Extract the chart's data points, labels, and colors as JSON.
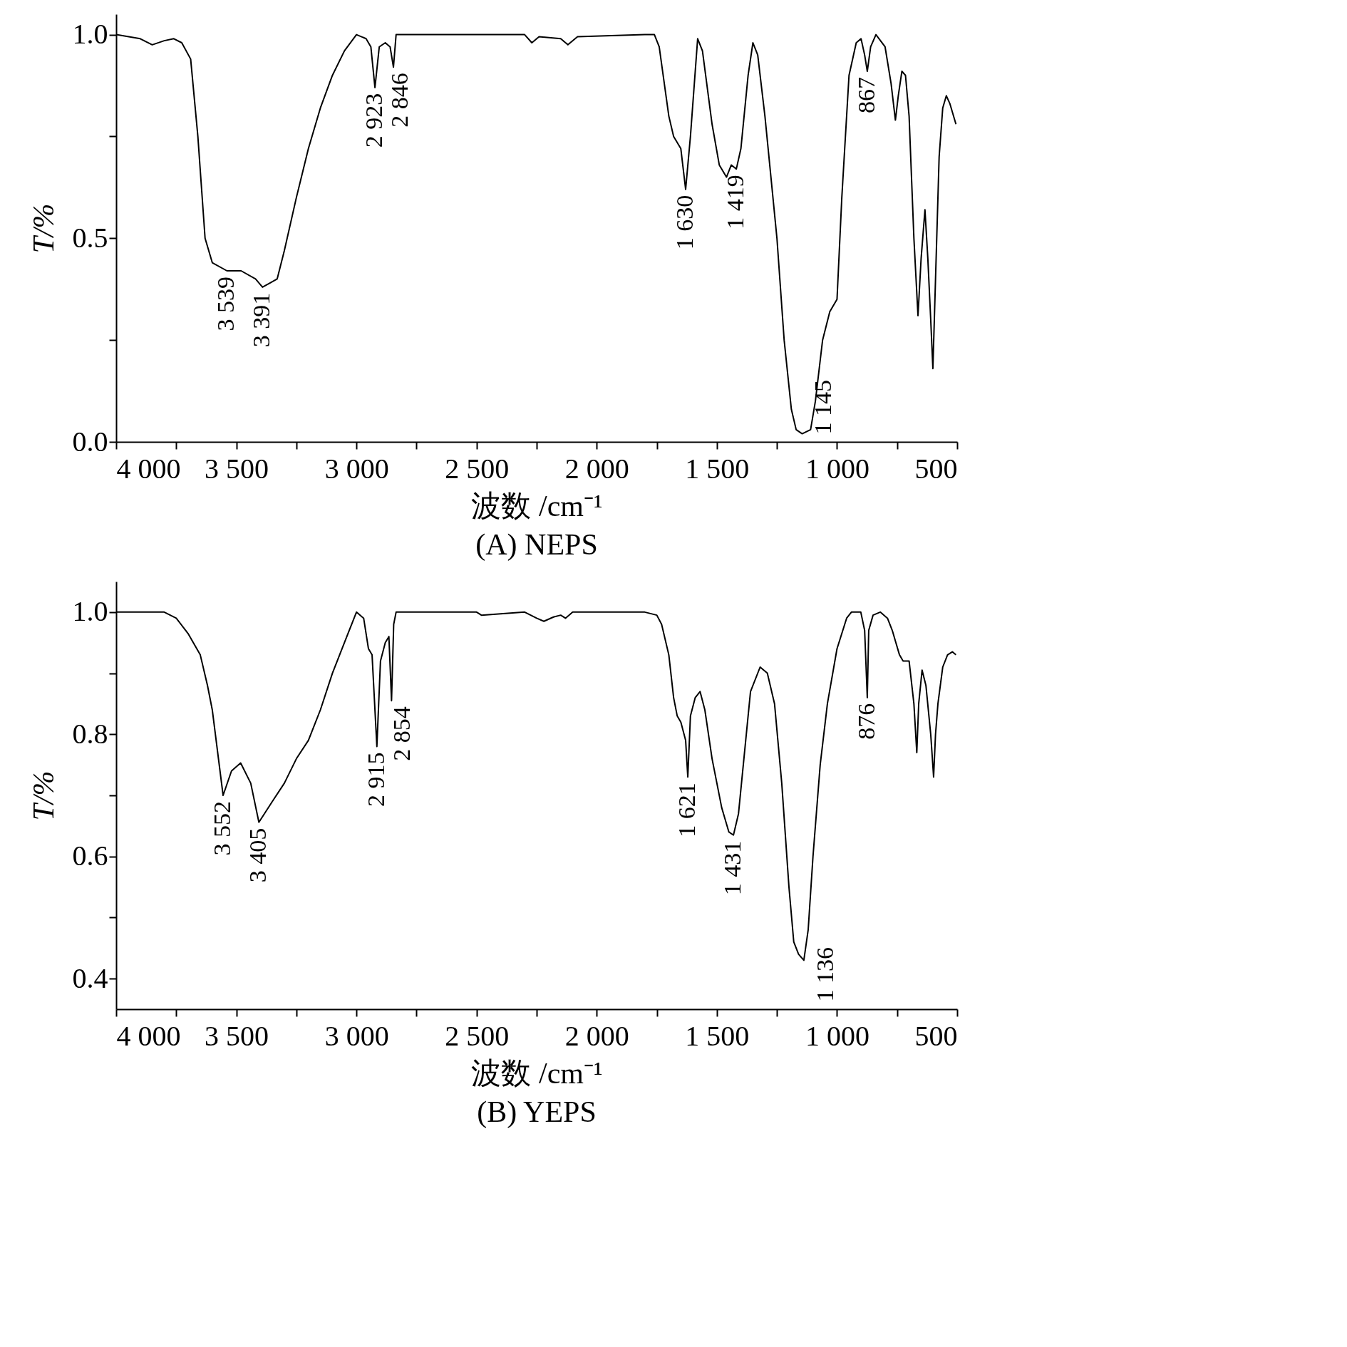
{
  "chart_data": [
    {
      "type": "line",
      "title": "(A) NEPS",
      "xlabel": "波数 /cm⁻¹",
      "ylabel": "T/%",
      "xlim": [
        4000,
        500
      ],
      "ylim": [
        0,
        1.05
      ],
      "xticks": [
        {
          "value": 4000,
          "label": "4 000"
        },
        {
          "value": 3750,
          "label": null
        },
        {
          "value": 3500,
          "label": "3 500"
        },
        {
          "value": 3250,
          "label": null
        },
        {
          "value": 3000,
          "label": "3 000"
        },
        {
          "value": 2750,
          "label": null
        },
        {
          "value": 2500,
          "label": "2 500"
        },
        {
          "value": 2250,
          "label": null
        },
        {
          "value": 2000,
          "label": "2 000"
        },
        {
          "value": 1750,
          "label": null
        },
        {
          "value": 1500,
          "label": "1 500"
        },
        {
          "value": 1250,
          "label": null
        },
        {
          "value": 1000,
          "label": "1 000"
        },
        {
          "value": 750,
          "label": null
        },
        {
          "value": 500,
          "label": "500"
        }
      ],
      "yticks": [
        {
          "value": 0,
          "label": "0.0"
        },
        {
          "value": 0.25,
          "label": null
        },
        {
          "value": 0.5,
          "label": "0.5"
        },
        {
          "value": 0.75,
          "label": null
        },
        {
          "value": 1,
          "label": "1.0"
        }
      ],
      "grid": false,
      "series": [
        {
          "color": "#000000",
          "x": [
            4000,
            3900,
            3850,
            3800,
            3760,
            3727,
            3690,
            3660,
            3630,
            3600,
            3539,
            3480,
            3420,
            3391,
            3360,
            3330,
            3300,
            3250,
            3200,
            3150,
            3100,
            3050,
            3000,
            2960,
            2940,
            2923,
            2905,
            2880,
            2860,
            2846,
            2835,
            2800,
            2500,
            2300,
            2270,
            2240,
            2150,
            2120,
            2080,
            1800,
            1760,
            1740,
            1700,
            1680,
            1650,
            1630,
            1610,
            1580,
            1560,
            1520,
            1490,
            1460,
            1440,
            1419,
            1400,
            1370,
            1350,
            1330,
            1300,
            1250,
            1220,
            1190,
            1170,
            1145,
            1110,
            1090,
            1060,
            1030,
            1000,
            980,
            950,
            920,
            900,
            885,
            874,
            860,
            838,
            800,
            775,
            757,
            745,
            730,
            715,
            700,
            680,
            663,
            650,
            634,
            622,
            610,
            601,
            590,
            575,
            560,
            545,
            530,
            505
          ],
          "values": [
            1.0,
            0.99,
            0.975,
            0.985,
            0.99,
            0.98,
            0.94,
            0.75,
            0.5,
            0.44,
            0.42,
            0.42,
            0.4,
            0.38,
            0.39,
            0.4,
            0.47,
            0.6,
            0.72,
            0.82,
            0.9,
            0.96,
            1.0,
            0.99,
            0.97,
            0.87,
            0.97,
            0.98,
            0.97,
            0.92,
            1.0,
            1.0,
            1.0,
            1.0,
            0.98,
            0.995,
            0.99,
            0.975,
            0.995,
            1.0,
            1.0,
            0.97,
            0.8,
            0.75,
            0.72,
            0.62,
            0.75,
            0.99,
            0.96,
            0.78,
            0.68,
            0.65,
            0.68,
            0.67,
            0.72,
            0.9,
            0.98,
            0.95,
            0.8,
            0.5,
            0.25,
            0.08,
            0.03,
            0.02,
            0.03,
            0.1,
            0.25,
            0.32,
            0.35,
            0.6,
            0.9,
            0.98,
            0.99,
            0.95,
            0.91,
            0.97,
            1.0,
            0.97,
            0.88,
            0.79,
            0.85,
            0.91,
            0.9,
            0.8,
            0.5,
            0.31,
            0.45,
            0.57,
            0.45,
            0.3,
            0.18,
            0.4,
            0.7,
            0.82,
            0.85,
            0.83,
            0.78
          ]
        }
      ],
      "annotations": [
        {
          "text": "3 539",
          "x": 3539,
          "y": 0.42
        },
        {
          "text": "3 391",
          "x": 3391,
          "y": 0.38
        },
        {
          "text": "2 923",
          "x": 2923,
          "y": 0.87
        },
        {
          "text": "2 846",
          "x": 2846,
          "y": 0.92
        },
        {
          "text": "1 630",
          "x": 1630,
          "y": 0.62
        },
        {
          "text": "1 419",
          "x": 1419,
          "y": 0.67
        },
        {
          "text": "1 145",
          "x": 1145,
          "y": 0.02
        },
        {
          "text": "867",
          "x": 874,
          "y": 0.91
        }
      ]
    },
    {
      "type": "line",
      "title": "(B) YEPS",
      "xlabel": "波数 /cm⁻¹",
      "ylabel": "T/%",
      "xlim": [
        4000,
        500
      ],
      "ylim": [
        0.35,
        1.05
      ],
      "xticks": [
        {
          "value": 4000,
          "label": "4 000"
        },
        {
          "value": 3750,
          "label": null
        },
        {
          "value": 3500,
          "label": "3 500"
        },
        {
          "value": 3250,
          "label": null
        },
        {
          "value": 3000,
          "label": "3 000"
        },
        {
          "value": 2750,
          "label": null
        },
        {
          "value": 2500,
          "label": "2 500"
        },
        {
          "value": 2250,
          "label": null
        },
        {
          "value": 2000,
          "label": "2 000"
        },
        {
          "value": 1750,
          "label": null
        },
        {
          "value": 1500,
          "label": "1 500"
        },
        {
          "value": 1250,
          "label": null
        },
        {
          "value": 1000,
          "label": "1 000"
        },
        {
          "value": 750,
          "label": null
        },
        {
          "value": 500,
          "label": "500"
        }
      ],
      "yticks": [
        {
          "value": 0.4,
          "label": "0.4"
        },
        {
          "value": 0.5,
          "label": null
        },
        {
          "value": 0.6,
          "label": "0.6"
        },
        {
          "value": 0.7,
          "label": null
        },
        {
          "value": 0.8,
          "label": "0.8"
        },
        {
          "value": 0.9,
          "label": null
        },
        {
          "value": 1,
          "label": "1.0"
        }
      ],
      "grid": false,
      "series": [
        {
          "color": "#000000",
          "x": [
            4000,
            3800,
            3750,
            3701,
            3650,
            3620,
            3600,
            3555,
            3520,
            3482,
            3440,
            3406,
            3350,
            3300,
            3250,
            3200,
            3150,
            3100,
            3050,
            3000,
            2970,
            2950,
            2935,
            2915,
            2900,
            2880,
            2865,
            2854,
            2845,
            2835,
            2500,
            2480,
            2300,
            2250,
            2220,
            2180,
            2150,
            2130,
            2100,
            1800,
            1750,
            1730,
            1700,
            1680,
            1665,
            1650,
            1630,
            1621,
            1610,
            1590,
            1570,
            1550,
            1520,
            1480,
            1450,
            1431,
            1410,
            1380,
            1360,
            1320,
            1290,
            1260,
            1230,
            1200,
            1180,
            1160,
            1138,
            1120,
            1100,
            1070,
            1040,
            1000,
            960,
            940,
            901,
            885,
            874,
            868,
            850,
            820,
            790,
            770,
            755,
            740,
            725,
            700,
            680,
            668,
            660,
            646,
            630,
            610,
            598,
            590,
            580,
            560,
            540,
            520,
            505
          ],
          "values": [
            1.0,
            1.0,
            0.99,
            0.965,
            0.93,
            0.88,
            0.84,
            0.7,
            0.74,
            0.753,
            0.72,
            0.656,
            0.69,
            0.72,
            0.76,
            0.79,
            0.84,
            0.9,
            0.95,
            1.0,
            0.99,
            0.94,
            0.93,
            0.78,
            0.92,
            0.95,
            0.96,
            0.855,
            0.98,
            1.0,
            1.0,
            0.995,
            1.0,
            0.99,
            0.985,
            0.992,
            0.995,
            0.99,
            1.0,
            1.0,
            0.995,
            0.98,
            0.93,
            0.86,
            0.83,
            0.82,
            0.79,
            0.73,
            0.83,
            0.86,
            0.87,
            0.84,
            0.76,
            0.68,
            0.64,
            0.635,
            0.67,
            0.79,
            0.87,
            0.91,
            0.9,
            0.85,
            0.72,
            0.55,
            0.46,
            0.44,
            0.43,
            0.48,
            0.6,
            0.75,
            0.85,
            0.94,
            0.99,
            1.0,
            1.0,
            0.97,
            0.86,
            0.97,
            0.995,
            1.0,
            0.99,
            0.97,
            0.95,
            0.93,
            0.92,
            0.92,
            0.85,
            0.77,
            0.85,
            0.905,
            0.88,
            0.8,
            0.73,
            0.8,
            0.85,
            0.91,
            0.93,
            0.935,
            0.93
          ]
        }
      ],
      "annotations": [
        {
          "text": "3 552",
          "x": 3555,
          "y": 0.7
        },
        {
          "text": "3 405",
          "x": 3406,
          "y": 0.656
        },
        {
          "text": "2 915",
          "x": 2915,
          "y": 0.78
        },
        {
          "text": "2 854",
          "x": 2854,
          "y": 0.855
        },
        {
          "text": "1 621",
          "x": 1621,
          "y": 0.73
        },
        {
          "text": "1 431",
          "x": 1431,
          "y": 0.635
        },
        {
          "text": "1 136",
          "x": 1138,
          "y": 0.43
        },
        {
          "text": "876",
          "x": 874,
          "y": 0.86
        }
      ]
    }
  ]
}
